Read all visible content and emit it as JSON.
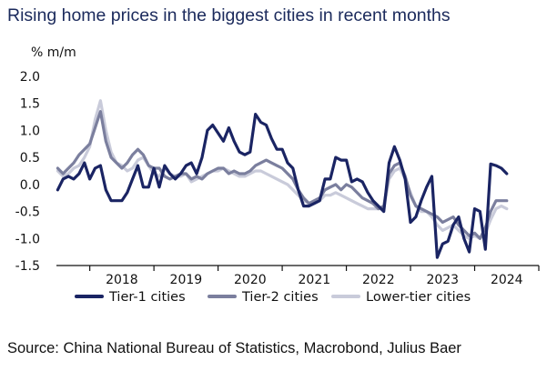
{
  "title": "Rising home prices in the biggest cities in recent months",
  "unit_label": "% m/m",
  "source": "Source: China National Bureau of Statistics, Macrobond, Julius Baer",
  "chart_data": {
    "type": "line",
    "ylim": [
      -1.5,
      2.0
    ],
    "yticks": [
      "2.0",
      "1.5",
      "1.0",
      "0.5",
      "0.0",
      "-0.5",
      "-1.0",
      "-1.5"
    ],
    "ytick_values": [
      2.0,
      1.5,
      1.0,
      0.5,
      0.0,
      -0.5,
      -1.0,
      -1.5
    ],
    "xlim": [
      2017.48,
      2025.0
    ],
    "xticks": [
      "2018",
      "2019",
      "2020",
      "2021",
      "2022",
      "2023",
      "2024"
    ],
    "xtick_years": [
      2018,
      2019,
      2020,
      2021,
      2022,
      2023,
      2024
    ],
    "grid": false,
    "legend_position": "bottom",
    "series": [
      {
        "name": "Tier-1 cities",
        "color": "#1a2463",
        "x_start": 2017.5,
        "x_step": 0.0833333,
        "values": [
          -0.1,
          0.1,
          0.15,
          0.1,
          0.2,
          0.4,
          0.1,
          0.3,
          0.35,
          -0.1,
          -0.3,
          -0.3,
          -0.3,
          -0.15,
          0.1,
          0.35,
          -0.05,
          -0.05,
          0.3,
          -0.05,
          0.35,
          0.2,
          0.1,
          0.2,
          0.35,
          0.4,
          0.2,
          0.5,
          1.0,
          1.1,
          0.95,
          0.8,
          1.05,
          0.8,
          0.6,
          0.55,
          0.6,
          1.3,
          1.15,
          1.1,
          0.85,
          0.65,
          0.65,
          0.4,
          0.3,
          -0.1,
          -0.4,
          -0.4,
          -0.35,
          -0.3,
          0.1,
          0.1,
          0.5,
          0.45,
          0.45,
          0.05,
          0.1,
          0.05,
          -0.15,
          -0.3,
          -0.4,
          -0.5,
          0.4,
          0.7,
          0.45,
          0.1,
          -0.7,
          -0.6,
          -0.3,
          -0.05,
          0.15,
          -1.35,
          -1.1,
          -1.05,
          -0.75,
          -0.6,
          -1.0,
          -1.25,
          -0.45,
          -0.5,
          -1.2,
          0.38,
          0.35,
          0.3,
          0.2
        ]
      },
      {
        "name": "Tier-2 cities",
        "color": "#7b7f9e",
        "x_start": 2017.5,
        "x_step": 0.0833333,
        "values": [
          0.3,
          0.2,
          0.3,
          0.4,
          0.55,
          0.65,
          0.75,
          1.05,
          1.35,
          0.8,
          0.5,
          0.4,
          0.3,
          0.4,
          0.55,
          0.65,
          0.55,
          0.35,
          0.3,
          0.3,
          0.15,
          0.1,
          0.15,
          0.2,
          0.2,
          0.1,
          0.15,
          0.1,
          0.2,
          0.25,
          0.3,
          0.3,
          0.2,
          0.25,
          0.2,
          0.2,
          0.25,
          0.35,
          0.4,
          0.45,
          0.4,
          0.35,
          0.3,
          0.2,
          0.1,
          -0.1,
          -0.25,
          -0.35,
          -0.3,
          -0.25,
          -0.1,
          -0.05,
          0.0,
          -0.1,
          0.0,
          -0.05,
          -0.15,
          -0.25,
          -0.3,
          -0.35,
          -0.45,
          -0.4,
          0.2,
          0.35,
          0.4,
          0.15,
          -0.2,
          -0.4,
          -0.45,
          -0.5,
          -0.55,
          -0.6,
          -0.7,
          -0.65,
          -0.6,
          -0.75,
          -0.85,
          -0.95,
          -0.9,
          -1.0,
          -0.8,
          -0.5,
          -0.3,
          -0.3,
          -0.3
        ]
      },
      {
        "name": "Lower-tier cities",
        "color": "#c9cbda",
        "x_start": 2017.5,
        "x_step": 0.0833333,
        "values": [
          0.25,
          0.15,
          0.2,
          0.3,
          0.35,
          0.5,
          0.7,
          1.2,
          1.55,
          1.0,
          0.6,
          0.4,
          0.35,
          0.25,
          0.3,
          0.45,
          0.5,
          0.35,
          0.2,
          0.15,
          0.3,
          0.2,
          0.15,
          0.15,
          0.2,
          0.05,
          0.1,
          0.15,
          0.2,
          0.25,
          0.25,
          0.3,
          0.25,
          0.2,
          0.15,
          0.15,
          0.2,
          0.25,
          0.25,
          0.2,
          0.15,
          0.1,
          0.05,
          0.0,
          -0.1,
          -0.2,
          -0.3,
          -0.35,
          -0.35,
          -0.3,
          -0.2,
          -0.2,
          -0.15,
          -0.2,
          -0.25,
          -0.3,
          -0.35,
          -0.4,
          -0.45,
          -0.45,
          -0.45,
          -0.45,
          0.1,
          0.25,
          0.3,
          0.1,
          -0.15,
          -0.4,
          -0.5,
          -0.5,
          -0.6,
          -0.75,
          -0.85,
          -0.8,
          -0.75,
          -0.85,
          -0.95,
          -1.0,
          -0.95,
          -1.0,
          -0.9,
          -0.65,
          -0.45,
          -0.4,
          -0.45
        ]
      }
    ]
  }
}
